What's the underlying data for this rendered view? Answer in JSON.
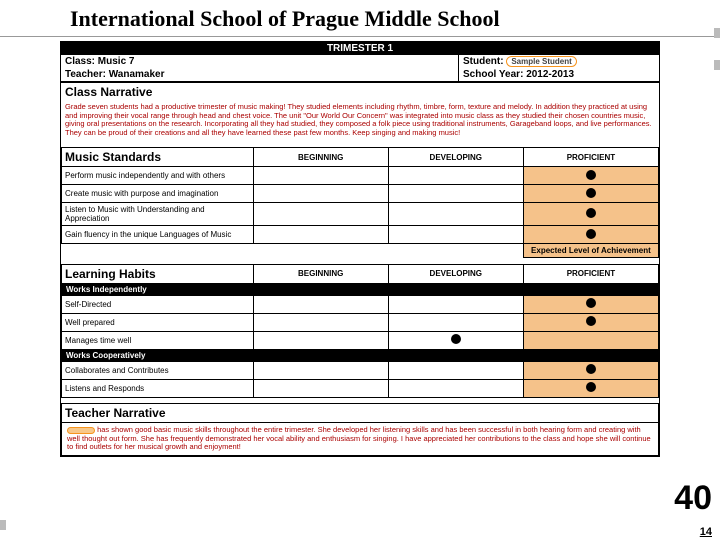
{
  "page": {
    "title": "International School of Prague Middle School",
    "big_number": "40",
    "small_number": "14"
  },
  "header": {
    "trimester": "TRIMESTER 1",
    "class_label": "Class:",
    "class_value": "Music 7",
    "teacher_label": "Teacher:",
    "teacher_value": "Wanamaker",
    "student_label": "Student:",
    "student_value": "Sample Student",
    "year_label": "School Year:",
    "year_value": "2012-2013"
  },
  "class_narrative": {
    "title": "Class Narrative",
    "body": "Grade seven students had a productive trimester of music making! They studied elements including rhythm, timbre, form, texture and melody. In addition they practiced at using and improving their vocal range through head and chest voice. The unit \"Our World Our Concern\" was integrated into music class as they studied their chosen countries music, giving oral presentations on the research. Incorporating all they had studied, they composed a folk piece using traditional instruments, Garageband loops, and live performances. They can be proud of their creations and all they have learned these past few months. Keep singing and making music!"
  },
  "columns": {
    "beginning": "BEGINNING",
    "developing": "DEVELOPING",
    "proficient": "PROFICIENT"
  },
  "music_standards": {
    "title": "Music Standards",
    "rows": [
      {
        "label": "Perform music independently and with others",
        "mark_col": 2,
        "highlight_col": 2
      },
      {
        "label": "Create music with purpose and imagination",
        "mark_col": 2,
        "highlight_col": 2
      },
      {
        "label": "Listen to Music with Understanding and Appreciation",
        "mark_col": 2,
        "highlight_col": 2
      },
      {
        "label": "Gain fluency in the unique Languages of Music",
        "mark_col": 2,
        "highlight_col": 2
      }
    ],
    "expected_label": "Expected Level of Achievement",
    "expected_highlight_col": 2
  },
  "learning_habits": {
    "title": "Learning Habits",
    "sub1": "Works Independently",
    "rows1": [
      {
        "label": "Self-Directed",
        "mark_col": 2,
        "highlight_col": 2
      },
      {
        "label": "Well prepared",
        "mark_col": 2,
        "highlight_col": 2
      },
      {
        "label": "Manages time well",
        "mark_col": 1,
        "highlight_col": 2
      }
    ],
    "sub2": "Works Cooperatively",
    "rows2": [
      {
        "label": "Collaborates and Contributes",
        "mark_col": 2,
        "highlight_col": 2
      },
      {
        "label": "Listens and Responds",
        "mark_col": 2,
        "highlight_col": 2
      }
    ]
  },
  "teacher_narrative": {
    "title": "Teacher Narrative",
    "body": "has shown good basic music skills throughout the entire trimester. She developed her listening skills and has been successful in both hearing form and creating with well thought out form. She has frequently demonstrated her vocal ability and enthusiasm for singing. I have appreciated her contributions to the class and hope she will continue to find outlets for her musical growth and enjoyment!"
  },
  "style": {
    "highlight_color": "#f5c28a",
    "narrative_text_color": "#a00000",
    "pill_border": "#f7941d"
  }
}
